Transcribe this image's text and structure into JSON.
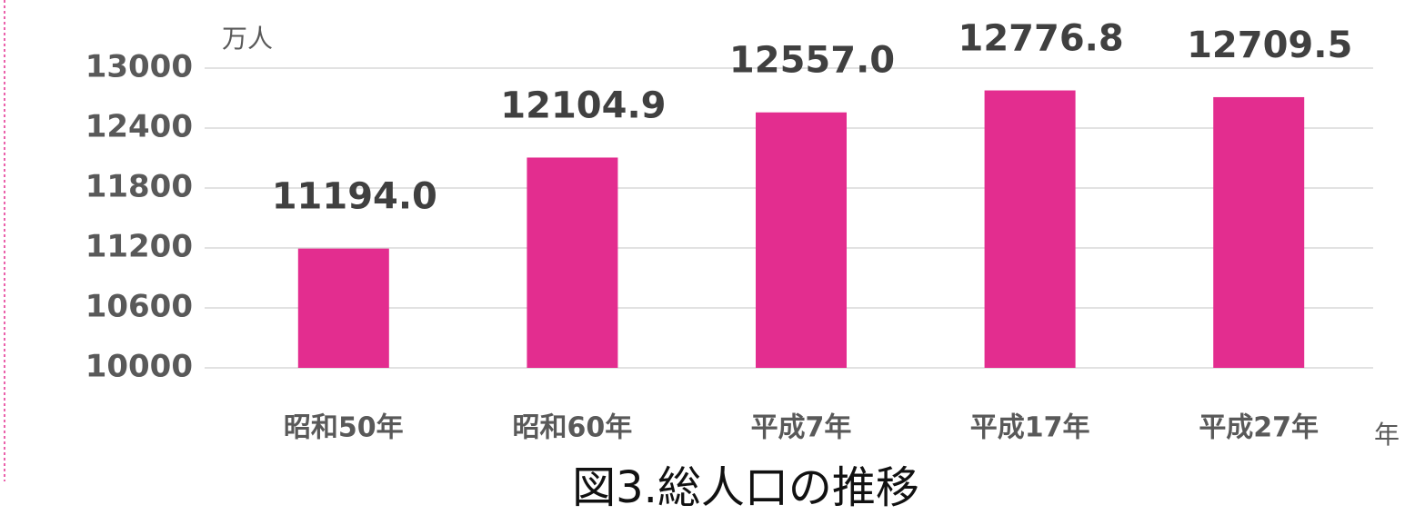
{
  "chart_data": {
    "type": "bar",
    "title": "図3.総人口の推移",
    "y_label": "万人",
    "x_label": "年",
    "categories": [
      "昭和50年",
      "昭和60年",
      "平成7年",
      "平成17年",
      "平成27年"
    ],
    "values": [
      11194.0,
      12104.9,
      12557.0,
      12776.8,
      12709.5
    ],
    "value_labels": [
      "11194.0",
      "12104.9",
      "12557.0",
      "12776.8",
      "12709.5"
    ],
    "color": "#e32d8f",
    "ylim": [
      10000,
      13000
    ],
    "yticks": [
      10000,
      10600,
      11200,
      11800,
      12400,
      13000
    ],
    "grid": true
  }
}
